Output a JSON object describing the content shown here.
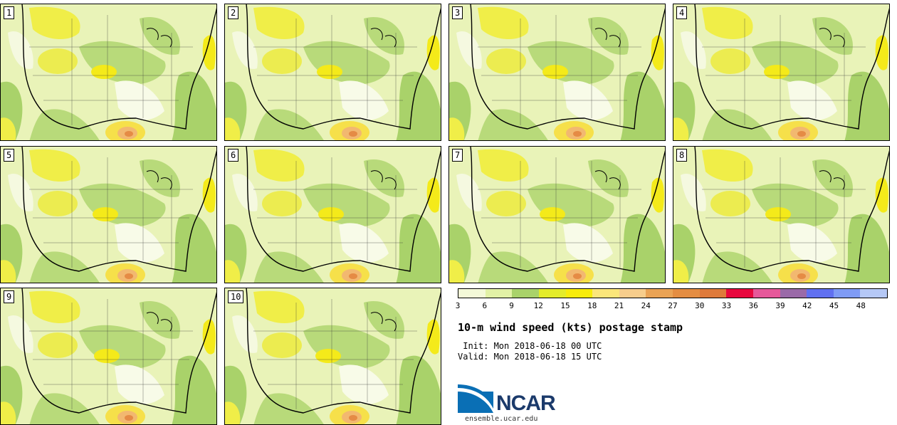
{
  "panels": [
    {
      "label": "1"
    },
    {
      "label": "2"
    },
    {
      "label": "3"
    },
    {
      "label": "4"
    },
    {
      "label": "5"
    },
    {
      "label": "6"
    },
    {
      "label": "7"
    },
    {
      "label": "8"
    },
    {
      "label": "9"
    },
    {
      "label": "10"
    }
  ],
  "colorbar": {
    "colors": [
      "#f4f9d8",
      "#e2f1a6",
      "#a9d26a",
      "#e4ec2a",
      "#f8ec0c",
      "#fbe67a",
      "#f7cd8c",
      "#eaa355",
      "#e48d42",
      "#de7a3b",
      "#e8083e",
      "#e6589a",
      "#9a6aa8",
      "#6070f0",
      "#7f9bf5",
      "#b5c8f6"
    ],
    "ticks": [
      "3",
      "6",
      "9",
      "12",
      "15",
      "18",
      "21",
      "24",
      "27",
      "30",
      "33",
      "36",
      "39",
      "42",
      "45",
      "48"
    ]
  },
  "title": "10-m wind speed (kts) postage stamp",
  "init": " Init: Mon 2018-06-18 00 UTC",
  "valid": "Valid: Mon 2018-06-18 15 UTC",
  "logo": {
    "text": "NCAR",
    "url": "ensemble.ucar.edu"
  }
}
